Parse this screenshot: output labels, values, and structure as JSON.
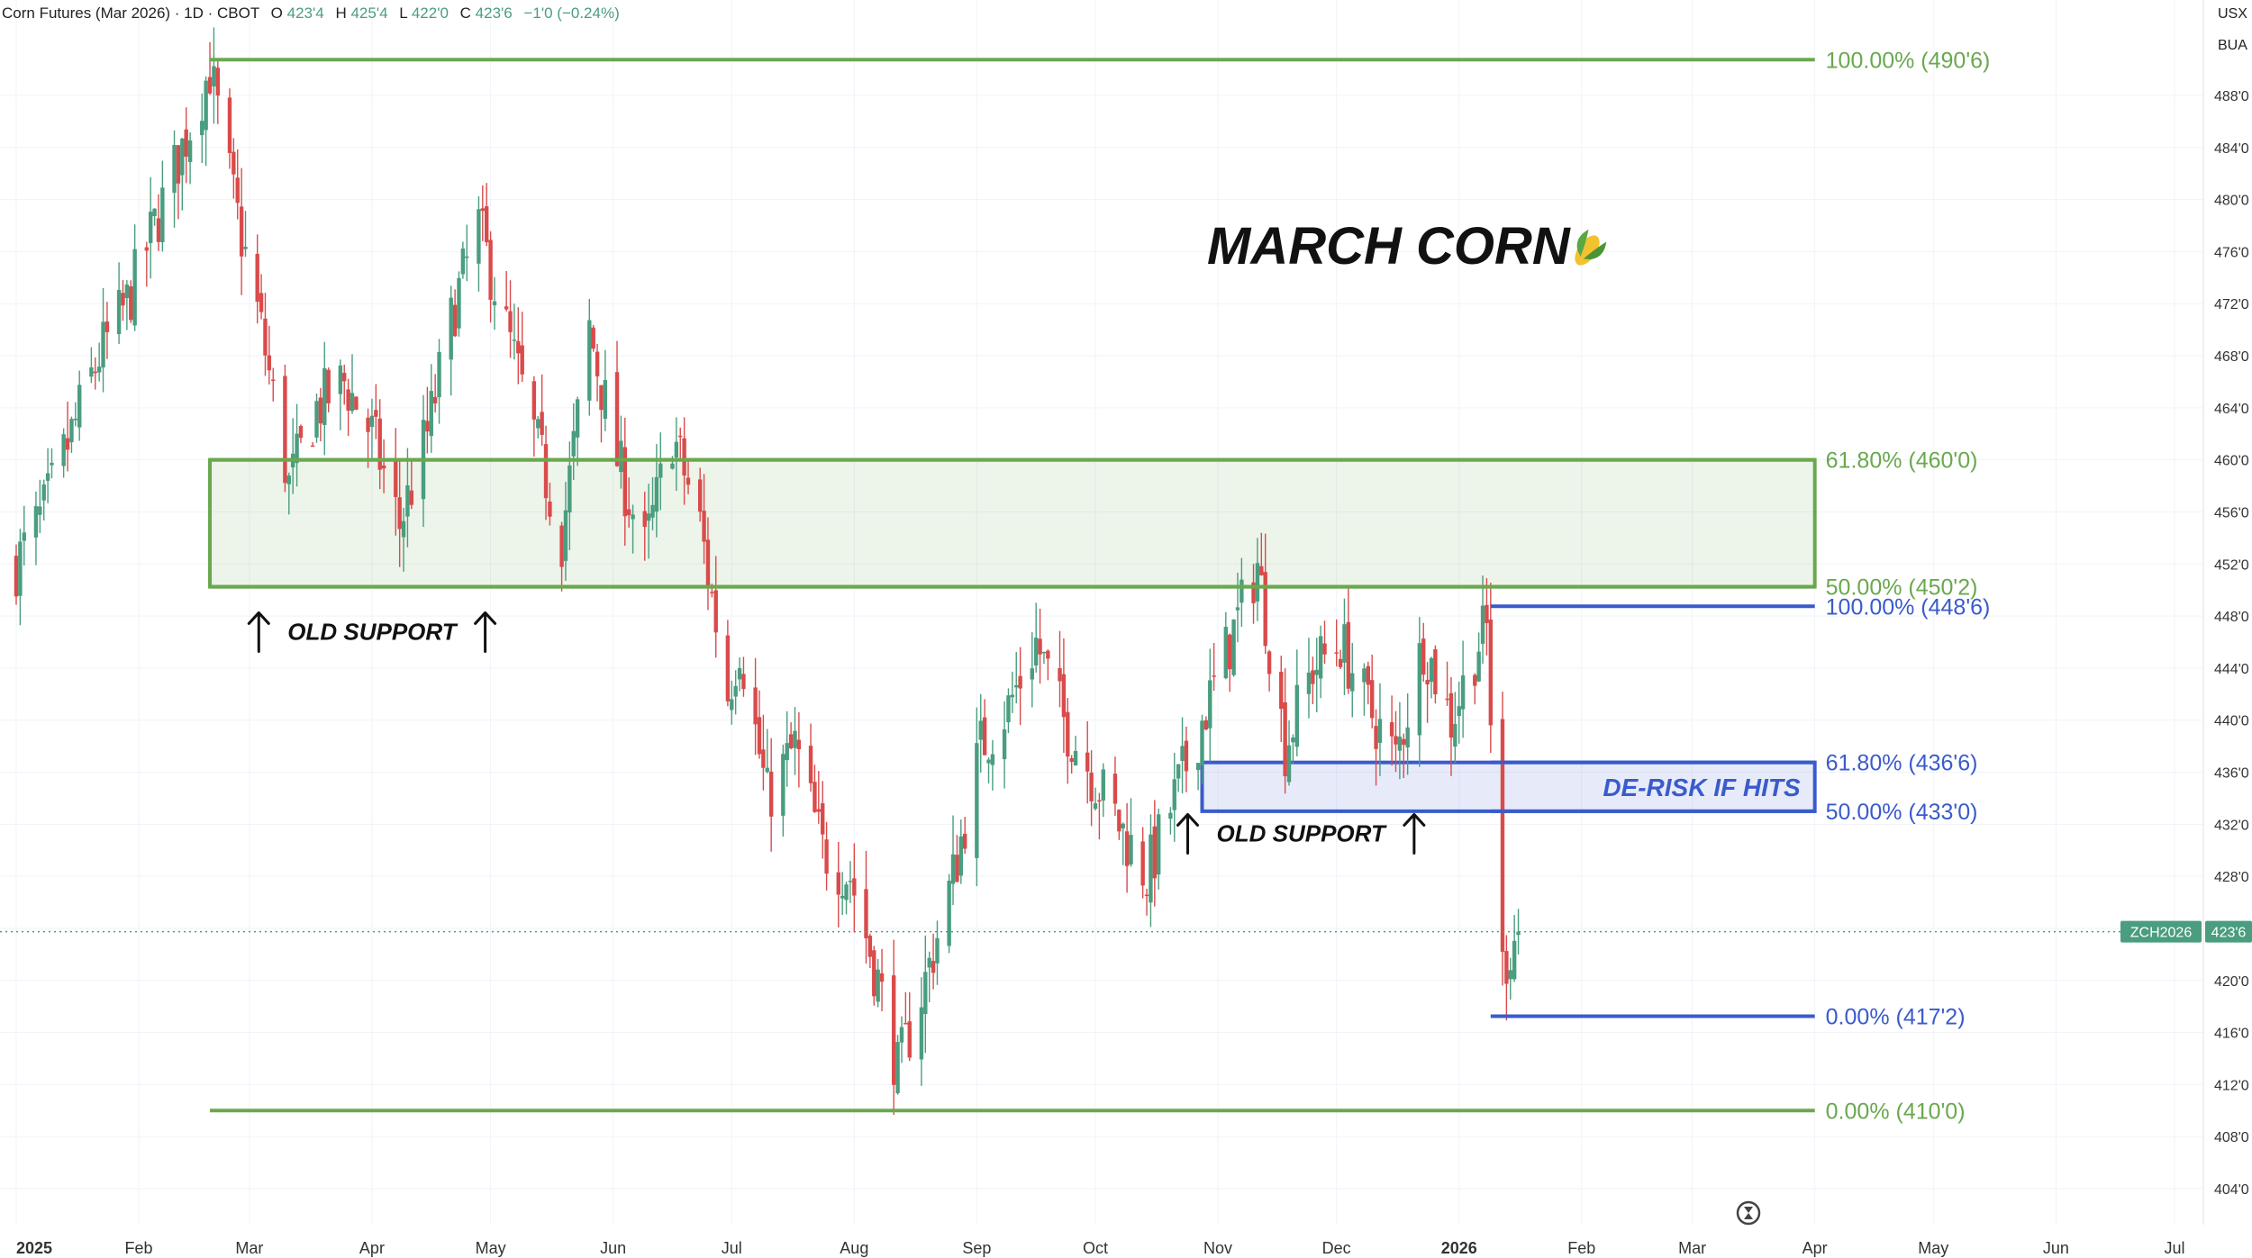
{
  "header": {
    "symbol_text": "Corn Futures (Mar 2026) · 1D · CBOT",
    "o_label": "O",
    "o_value": "423'4",
    "h_label": "H",
    "h_value": "425'4",
    "l_label": "L",
    "l_value": "422'0",
    "c_label": "C",
    "c_value": "423'6",
    "change": "−1'0 (−0.24%)",
    "currency": "USX",
    "unit": "BUA"
  },
  "colors": {
    "up": "#4a9d7f",
    "down": "#d94b4b",
    "fib_green": "#6aa84f",
    "fib_blue": "#3a5bcc",
    "text_muted": "#555555"
  },
  "title": "MARCH CORN",
  "title_icon": "corn-emoji-icon",
  "chart_data": {
    "type": "candlestick",
    "instrument": "Corn Futures (Mar 2026)",
    "interval": "1D",
    "exchange": "CBOT",
    "price_axis": {
      "ylim": [
        402,
        493
      ],
      "ticks": [
        "488'0",
        "484'0",
        "480'0",
        "476'0",
        "472'0",
        "468'0",
        "464'0",
        "460'0",
        "456'0",
        "452'0",
        "448'0",
        "444'0",
        "440'0",
        "436'0",
        "432'0",
        "428'0",
        "424'0",
        "420'0",
        "416'0",
        "412'0",
        "408'0",
        "404'0"
      ],
      "tick_values": [
        488,
        484,
        480,
        476,
        472,
        468,
        464,
        460,
        456,
        452,
        448,
        444,
        440,
        436,
        432,
        428,
        424,
        420,
        416,
        412,
        408,
        404
      ]
    },
    "time_axis": {
      "range": [
        "2025-01-01",
        "2026-07-01"
      ],
      "labels": [
        {
          "text": "2025",
          "date": "2025-01-01",
          "bold": true
        },
        {
          "text": "Feb",
          "date": "2025-02-01"
        },
        {
          "text": "Mar",
          "date": "2025-03-01"
        },
        {
          "text": "Apr",
          "date": "2025-04-01"
        },
        {
          "text": "May",
          "date": "2025-05-01"
        },
        {
          "text": "Jun",
          "date": "2025-06-01"
        },
        {
          "text": "Jul",
          "date": "2025-07-01"
        },
        {
          "text": "Aug",
          "date": "2025-08-01"
        },
        {
          "text": "Sep",
          "date": "2025-09-01"
        },
        {
          "text": "Oct",
          "date": "2025-10-01"
        },
        {
          "text": "Nov",
          "date": "2025-11-01"
        },
        {
          "text": "Dec",
          "date": "2025-12-01"
        },
        {
          "text": "2026",
          "date": "2026-01-01",
          "bold": true
        },
        {
          "text": "Feb",
          "date": "2026-02-01"
        },
        {
          "text": "Mar",
          "date": "2026-03-01"
        },
        {
          "text": "Apr",
          "date": "2026-04-01"
        },
        {
          "text": "May",
          "date": "2026-05-01"
        },
        {
          "text": "Jun",
          "date": "2026-06-01"
        },
        {
          "text": "Jul",
          "date": "2026-07-01"
        }
      ]
    },
    "price_path": [
      [
        "2025-01-01",
        452
      ],
      [
        "2025-01-08",
        456
      ],
      [
        "2025-01-15",
        462
      ],
      [
        "2025-01-22",
        468
      ],
      [
        "2025-01-29",
        472
      ],
      [
        "2025-02-05",
        478
      ],
      [
        "2025-02-12",
        484
      ],
      [
        "2025-02-19",
        490
      ],
      [
        "2025-02-25",
        480
      ],
      [
        "2025-03-04",
        470
      ],
      [
        "2025-03-11",
        458
      ],
      [
        "2025-03-18",
        464
      ],
      [
        "2025-03-25",
        466
      ],
      [
        "2025-04-01",
        462
      ],
      [
        "2025-04-08",
        455
      ],
      [
        "2025-04-15",
        462
      ],
      [
        "2025-04-22",
        472
      ],
      [
        "2025-04-28",
        478
      ],
      [
        "2025-05-05",
        470
      ],
      [
        "2025-05-12",
        462
      ],
      [
        "2025-05-19",
        454
      ],
      [
        "2025-05-26",
        470
      ],
      [
        "2025-06-02",
        460
      ],
      [
        "2025-06-09",
        453
      ],
      [
        "2025-06-16",
        462
      ],
      [
        "2025-06-23",
        455
      ],
      [
        "2025-06-30",
        442
      ],
      [
        "2025-07-03",
        446
      ],
      [
        "2025-07-10",
        434
      ],
      [
        "2025-07-17",
        438
      ],
      [
        "2025-07-24",
        430
      ],
      [
        "2025-07-31",
        428
      ],
      [
        "2025-08-07",
        420
      ],
      [
        "2025-08-12",
        413
      ],
      [
        "2025-08-19",
        420
      ],
      [
        "2025-08-26",
        428
      ],
      [
        "2025-09-02",
        438
      ],
      [
        "2025-09-09",
        441
      ],
      [
        "2025-09-16",
        446
      ],
      [
        "2025-09-23",
        440
      ],
      [
        "2025-09-30",
        436
      ],
      [
        "2025-10-07",
        432
      ],
      [
        "2025-10-14",
        428
      ],
      [
        "2025-10-21",
        434
      ],
      [
        "2025-10-28",
        440
      ],
      [
        "2025-11-04",
        446
      ],
      [
        "2025-11-11",
        452
      ],
      [
        "2025-11-18",
        438
      ],
      [
        "2025-11-25",
        444
      ],
      [
        "2025-12-02",
        446
      ],
      [
        "2025-12-09",
        441
      ],
      [
        "2025-12-16",
        437
      ],
      [
        "2025-12-23",
        446
      ],
      [
        "2025-12-30",
        440
      ],
      [
        "2026-01-06",
        446
      ],
      [
        "2026-01-08",
        447
      ],
      [
        "2026-01-12",
        421
      ],
      [
        "2026-01-16",
        424
      ]
    ],
    "last_candle": {
      "date": "2026-01-16",
      "open": 423.5,
      "high": 425.5,
      "low": 422.0,
      "close": 423.75
    },
    "last_price": {
      "label": "ZCH2026",
      "value": "423'6",
      "price": 423.75
    },
    "fib_green": {
      "start": "2025-02-19",
      "end": "2026-04-01",
      "levels": [
        {
          "label": "100.00% (490'6)",
          "price": 490.75
        },
        {
          "label": "61.80% (460'0)",
          "price": 460.0
        },
        {
          "label": "50.00% (450'2)",
          "price": 450.25
        },
        {
          "label": "0.00% (410'0)",
          "price": 410.0
        }
      ],
      "zone": [
        450.25,
        460.0
      ]
    },
    "fib_blue": {
      "start": "2026-01-09",
      "end": "2026-04-01",
      "levels": [
        {
          "label": "100.00% (448'6)",
          "price": 448.75
        },
        {
          "label": "61.80% (436'6)",
          "price": 436.75
        },
        {
          "label": "50.00% (433'0)",
          "price": 433.0
        },
        {
          "label": "0.00% (417'2)",
          "price": 417.25
        }
      ],
      "zone_start": "2025-10-28",
      "zone": [
        433.0,
        436.75
      ],
      "zone_label": "DE-RISK IF HITS"
    },
    "annotations": [
      {
        "text": "OLD SUPPORT",
        "date": "2025-04-01",
        "price": 446.8
      },
      {
        "text": "OLD SUPPORT",
        "date": "2025-11-22",
        "price": 431.3
      }
    ]
  }
}
